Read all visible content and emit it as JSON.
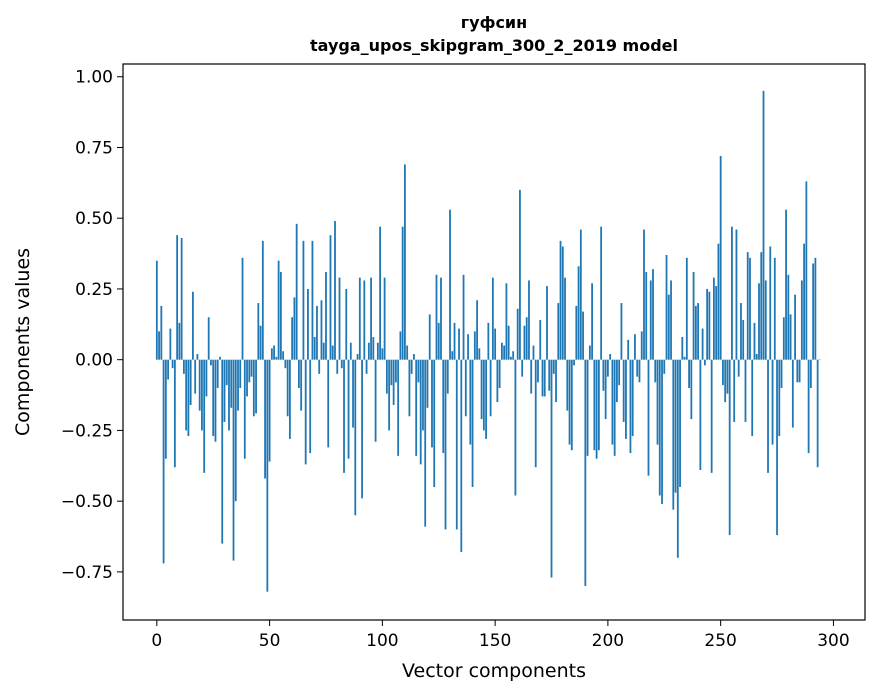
{
  "chart_data": {
    "type": "bar",
    "title": "гуфсин",
    "subtitle": "tayga_upos_skipgram_300_2_2019 model",
    "xlabel": "Vector components",
    "ylabel": "Components values",
    "xlim": [
      -15,
      314
    ],
    "ylim": [
      -0.92,
      1.045
    ],
    "xticks": [
      0,
      50,
      100,
      150,
      200,
      250,
      300
    ],
    "yticks": [
      -0.75,
      -0.5,
      -0.25,
      0.0,
      0.25,
      0.5,
      0.75,
      1.0
    ],
    "ytick_labels": [
      "−0.75",
      "−0.50",
      "−0.25",
      "0.00",
      "0.25",
      "0.50",
      "0.75",
      "1.00"
    ],
    "bar_color": "#1f77b4",
    "grid": false,
    "values": [
      0.35,
      0.1,
      0.19,
      -0.72,
      -0.35,
      -0.07,
      0.11,
      -0.03,
      -0.38,
      0.44,
      0.13,
      0.43,
      -0.05,
      -0.25,
      -0.27,
      -0.16,
      0.24,
      -0.12,
      0.02,
      -0.18,
      -0.25,
      -0.4,
      -0.13,
      0.15,
      -0.02,
      -0.27,
      -0.29,
      -0.1,
      0.01,
      -0.65,
      -0.22,
      -0.09,
      -0.25,
      -0.17,
      -0.71,
      -0.5,
      -0.18,
      -0.1,
      0.36,
      -0.35,
      -0.13,
      -0.08,
      -0.06,
      -0.2,
      -0.19,
      0.2,
      0.12,
      0.42,
      -0.42,
      -0.82,
      -0.36,
      0.04,
      0.05,
      0.01,
      0.35,
      0.31,
      0.03,
      -0.03,
      -0.2,
      -0.28,
      0.15,
      0.22,
      0.48,
      -0.1,
      -0.18,
      0.42,
      -0.37,
      0.25,
      -0.33,
      0.42,
      0.08,
      0.19,
      -0.05,
      0.21,
      0.06,
      0.31,
      -0.31,
      0.44,
      0.05,
      0.49,
      -0.05,
      0.29,
      -0.03,
      -0.4,
      0.25,
      -0.35,
      0.06,
      -0.24,
      -0.55,
      0.02,
      0.29,
      -0.49,
      0.28,
      -0.05,
      0.06,
      0.29,
      0.08,
      -0.29,
      0.06,
      0.47,
      0.04,
      0.29,
      -0.12,
      -0.25,
      -0.09,
      -0.16,
      -0.08,
      -0.34,
      0.1,
      0.47,
      0.69,
      0.05,
      -0.2,
      -0.05,
      0.02,
      -0.34,
      -0.08,
      -0.37,
      -0.25,
      -0.59,
      -0.17,
      0.16,
      -0.31,
      -0.45,
      0.3,
      0.13,
      0.29,
      -0.33,
      -0.6,
      -0.12,
      0.53,
      0.03,
      0.13,
      -0.6,
      0.11,
      -0.68,
      0.3,
      -0.2,
      0.09,
      -0.3,
      -0.45,
      0.1,
      0.21,
      0.04,
      -0.21,
      -0.25,
      -0.28,
      0.13,
      -0.2,
      0.29,
      0.11,
      -0.15,
      -0.1,
      0.06,
      0.05,
      0.27,
      0.12,
      0.01,
      0.03,
      -0.48,
      0.18,
      0.6,
      -0.06,
      0.12,
      0.15,
      0.28,
      -0.12,
      0.05,
      -0.38,
      -0.08,
      0.14,
      -0.13,
      -0.13,
      0.26,
      -0.11,
      -0.77,
      -0.05,
      -0.15,
      0.2,
      0.42,
      0.4,
      0.29,
      -0.18,
      -0.3,
      -0.32,
      -0.02,
      0.19,
      0.33,
      0.46,
      0.17,
      -0.8,
      -0.34,
      0.05,
      0.27,
      -0.32,
      -0.35,
      -0.32,
      0.47,
      -0.11,
      -0.21,
      -0.06,
      0.02,
      -0.3,
      -0.34,
      -0.15,
      -0.09,
      0.2,
      -0.22,
      -0.28,
      0.07,
      -0.33,
      -0.27,
      0.09,
      -0.06,
      -0.08,
      0.1,
      0.46,
      0.31,
      -0.41,
      0.28,
      0.32,
      -0.08,
      -0.3,
      -0.48,
      -0.51,
      -0.05,
      0.37,
      0.23,
      0.28,
      -0.53,
      -0.47,
      -0.7,
      -0.45,
      0.08,
      0.01,
      0.36,
      -0.1,
      -0.21,
      0.31,
      0.19,
      0.2,
      -0.39,
      0.11,
      -0.02,
      0.25,
      0.24,
      -0.4,
      0.29,
      0.26,
      0.41,
      0.72,
      -0.09,
      -0.15,
      -0.12,
      -0.62,
      0.47,
      -0.22,
      0.46,
      -0.06,
      0.2,
      0.14,
      -0.22,
      0.38,
      0.36,
      -0.27,
      0.13,
      0.02,
      0.27,
      0.38,
      0.95,
      0.28,
      -0.4,
      0.4,
      -0.3,
      0.36,
      -0.62,
      -0.27,
      -0.1,
      0.15,
      0.53,
      0.3,
      0.16,
      -0.24,
      0.23,
      -0.08,
      -0.08,
      0.28,
      0.41,
      0.63,
      -0.33,
      -0.1,
      0.34,
      0.36,
      -0.38,
      0.0
    ]
  }
}
